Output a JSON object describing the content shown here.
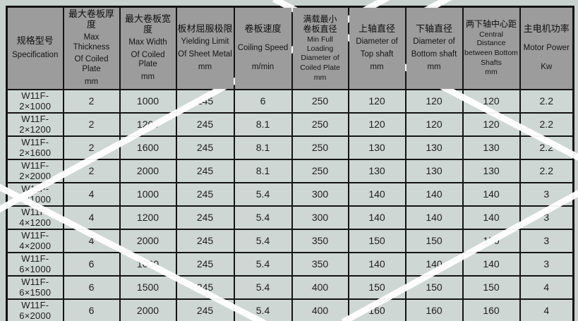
{
  "colors": {
    "page_bg": "#c8d1cd",
    "header_bg": "#9c9c9c",
    "cell_bg": "#cfd7d5",
    "border": "#141414",
    "stripe": "#ffffff"
  },
  "table": {
    "columns": [
      {
        "zh_lines": [
          "规格型号"
        ],
        "en_lines": [
          "Specification"
        ]
      },
      {
        "zh_lines": [
          "最大卷板厚度"
        ],
        "en_lines": [
          "Max Thickness",
          "Of Coiled Plate",
          "mm"
        ]
      },
      {
        "zh_lines": [
          "最大卷板宽度"
        ],
        "en_lines": [
          "Max Width",
          "Of Coiled Plate",
          "mm"
        ]
      },
      {
        "zh_lines": [
          "板材屈服极限"
        ],
        "en_lines": [
          "Yielding Limit",
          "Of Sheet Metal",
          "mm"
        ]
      },
      {
        "zh_lines": [
          "卷板速度"
        ],
        "en_lines": [
          "Coiling Speed",
          "m/min"
        ]
      },
      {
        "zh_lines": [
          "满载最小",
          "卷板直径"
        ],
        "en_lines": [
          "Min Full Loading",
          "Diameter of",
          "Coiled Plate",
          "mm"
        ]
      },
      {
        "zh_lines": [
          "上轴直径"
        ],
        "en_lines": [
          "Diameter of",
          "Top shaft",
          "mm"
        ]
      },
      {
        "zh_lines": [
          "下轴直径"
        ],
        "en_lines": [
          "Diameter of",
          "Bottom shaft",
          "mm"
        ]
      },
      {
        "zh_lines": [
          "两下轴中心距"
        ],
        "en_lines": [
          "Central  Distance",
          "between Bottom",
          "Shafts",
          "mm"
        ]
      },
      {
        "zh_lines": [
          "主电机功率"
        ],
        "en_lines": [
          "Motor Power",
          "Kw"
        ]
      }
    ],
    "rows": [
      [
        "W11F-2×1000",
        "2",
        "1000",
        "245",
        "6",
        "250",
        "120",
        "120",
        "120",
        "2.2"
      ],
      [
        "W11F-2×1200",
        "2",
        "1200",
        "245",
        "8.1",
        "250",
        "120",
        "120",
        "120",
        "2.2"
      ],
      [
        "W11F-2×1600",
        "2",
        "1600",
        "245",
        "8.1",
        "250",
        "130",
        "130",
        "130",
        "2.2"
      ],
      [
        "W11F-2×2000",
        "2",
        "2000",
        "245",
        "8.1",
        "250",
        "130",
        "130",
        "130",
        "2.2"
      ],
      [
        "W11F-4×1000",
        "4",
        "1000",
        "245",
        "5.4",
        "300",
        "140",
        "140",
        "140",
        "3"
      ],
      [
        "W11F-4×1200",
        "4",
        "1200",
        "245",
        "5.4",
        "300",
        "140",
        "140",
        "140",
        "3"
      ],
      [
        "W11F-4×2000",
        "4",
        "2000",
        "245",
        "5.4",
        "350",
        "150",
        "150",
        "150",
        "3"
      ],
      [
        "W11F-6×1000",
        "6",
        "1000",
        "245",
        "5.4",
        "350",
        "140",
        "140",
        "140",
        "3"
      ],
      [
        "W11F-6×1500",
        "6",
        "1500",
        "245",
        "5.4",
        "400",
        "150",
        "150",
        "150",
        "4"
      ],
      [
        "W11F-6×2000",
        "6",
        "2000",
        "245",
        "5.4",
        "400",
        "160",
        "160",
        "160",
        "4"
      ]
    ]
  }
}
